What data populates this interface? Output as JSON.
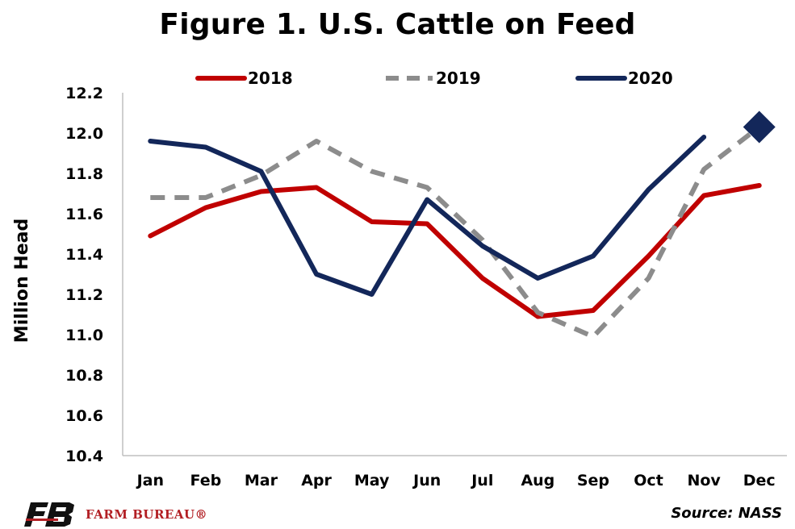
{
  "chart_data": {
    "type": "line",
    "title": "Figure 1. U.S. Cattle on Feed",
    "ylabel": "Million Head",
    "xlabel": "",
    "categories": [
      "Jan",
      "Feb",
      "Mar",
      "Apr",
      "May",
      "Jun",
      "Jul",
      "Aug",
      "Sep",
      "Oct",
      "Nov",
      "Dec"
    ],
    "ylim": [
      10.4,
      12.2
    ],
    "yticks": [
      "12.2",
      "12.0",
      "11.8",
      "11.6",
      "11.4",
      "11.2",
      "11.0",
      "10.8",
      "10.6",
      "10.4"
    ],
    "yticks_values": [
      12.2,
      12.0,
      11.8,
      11.6,
      11.4,
      11.2,
      11.0,
      10.8,
      10.6,
      10.4
    ],
    "grid": false,
    "legend_position": "top",
    "series": [
      {
        "name": "2018",
        "color": "#c00000",
        "style": "solid",
        "values": [
          11.49,
          11.63,
          11.71,
          11.73,
          11.56,
          11.55,
          11.28,
          11.09,
          11.12,
          11.39,
          11.69,
          11.74
        ]
      },
      {
        "name": "2019",
        "color": "#8c8c8c",
        "style": "dashed",
        "values": [
          11.68,
          11.68,
          11.79,
          11.96,
          11.81,
          11.73,
          11.47,
          11.11,
          10.99,
          11.28,
          11.82,
          12.03
        ]
      },
      {
        "name": "2020",
        "color": "#13275a",
        "style": "solid",
        "values": [
          11.96,
          11.93,
          11.81,
          11.3,
          11.2,
          11.67,
          11.44,
          11.28,
          11.39,
          11.72,
          11.98,
          null
        ]
      }
    ],
    "markers": [
      {
        "series": "2020",
        "category": "Dec",
        "value": 12.03,
        "shape": "diamond",
        "color": "#13275a"
      }
    ]
  },
  "footer": {
    "source": "Source: NASS",
    "logo_mark": "FB",
    "logo_text": "FARM BUREAU®"
  }
}
